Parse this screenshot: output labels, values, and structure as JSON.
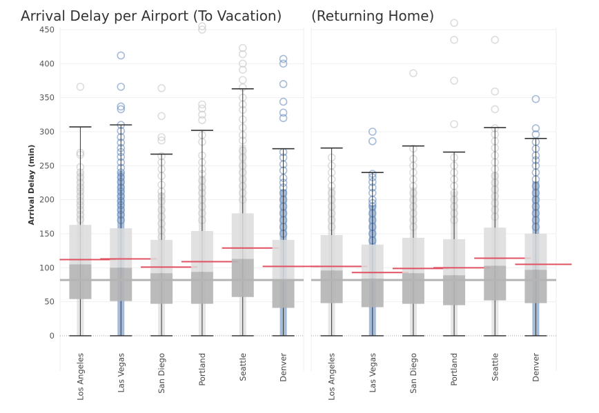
{
  "chart_data": {
    "type": "box",
    "ylabel": "Arrival Delay (min)",
    "yticks": [
      0,
      50,
      100,
      150,
      200,
      250,
      300,
      350,
      400,
      450
    ],
    "ylim": [
      -5,
      460
    ],
    "grid": true,
    "reference_line": 82,
    "colors": {
      "box_upper": "#dcdcdc",
      "box_lower": "#b4b4b4",
      "median_line": "#e05060",
      "reference_line": "#b4b4b4",
      "whisker": "#333333",
      "outlier_grey": "#c6c6c6",
      "outlier_blue": "#5b84b8"
    },
    "panels": [
      {
        "title": "Arrival Delay per Airport (To Vacation)",
        "categories": [
          "Los Angeles",
          "Las Vegas",
          "San Diego",
          "Portland",
          "Seattle",
          "Denver"
        ],
        "highlight": [
          false,
          true,
          false,
          false,
          false,
          true
        ],
        "whisker_low": [
          0,
          0,
          0,
          0,
          0,
          0
        ],
        "q1": [
          54,
          51,
          47,
          47,
          57,
          41
        ],
        "q2": [
          105,
          100,
          92,
          94,
          113,
          81
        ],
        "q3": [
          163,
          158,
          141,
          154,
          180,
          141
        ],
        "whisker_high": [
          307,
          310,
          267,
          302,
          363,
          275
        ],
        "mean": [
          112,
          113,
          101,
          109,
          129,
          102
        ],
        "outliers": [
          [
            366,
            269,
            266,
            248,
            240,
            233,
            225,
            218,
            212,
            205,
            198,
            192,
            185,
            178,
            171
          ],
          [
            412,
            366,
            337,
            333,
            310,
            301,
            292,
            284,
            276,
            270,
            263,
            255,
            247,
            240,
            233,
            226,
            218,
            212,
            205,
            198,
            192,
            185,
            178,
            170
          ],
          [
            364,
            323,
            292,
            287,
            264,
            255,
            245,
            235,
            222,
            212,
            205,
            198,
            185,
            175,
            165,
            155,
            145
          ],
          [
            455,
            450,
            340,
            334,
            325,
            317,
            295,
            285,
            265,
            255,
            245,
            238,
            228,
            218,
            210,
            200,
            190,
            180,
            170
          ],
          [
            423,
            414,
            400,
            391,
            376,
            365,
            350,
            340,
            332,
            318,
            306,
            295,
            287,
            272,
            262,
            250,
            240,
            230,
            220,
            210,
            200
          ],
          [
            407,
            400,
            370,
            344,
            328,
            320,
            270,
            262,
            252,
            243,
            232,
            225,
            218,
            210,
            200,
            190,
            180,
            170,
            160,
            150
          ]
        ]
      },
      {
        "title": "(Returning Home)",
        "categories": [
          "Los Angeles",
          "Las Vegas",
          "San Diego",
          "Portland",
          "Seattle",
          "Denver"
        ],
        "highlight": [
          false,
          true,
          false,
          false,
          false,
          true
        ],
        "whisker_low": [
          0,
          0,
          0,
          0,
          0,
          0
        ],
        "q1": [
          48,
          42,
          47,
          45,
          52,
          48
        ],
        "q2": [
          96,
          84,
          92,
          89,
          103,
          97
        ],
        "q3": [
          148,
          134,
          144,
          142,
          159,
          150
        ],
        "whisker_high": [
          276,
          240,
          279,
          270,
          306,
          290
        ],
        "mean": [
          102,
          93,
          99,
          100,
          114,
          105
        ],
        "outliers": [
          [
            262,
            250,
            240,
            230,
            220,
            210,
            200,
            190,
            180,
            170,
            160
          ],
          [
            300,
            286,
            238,
            233,
            226,
            218,
            210,
            200,
            195,
            190,
            180,
            170,
            160,
            150,
            140
          ],
          [
            386,
            275,
            260,
            250,
            240,
            230,
            220,
            210,
            200,
            190,
            180,
            170,
            160
          ],
          [
            460,
            435,
            375,
            311,
            262,
            250,
            240,
            230,
            220,
            210,
            200,
            190,
            180,
            170
          ],
          [
            435,
            359,
            333,
            305,
            296,
            286,
            276,
            265,
            255,
            245,
            235,
            225,
            215,
            205,
            195,
            185,
            175
          ],
          [
            348,
            305,
            296,
            285,
            275,
            265,
            258,
            250,
            240,
            230,
            220,
            210,
            200,
            190,
            180,
            170,
            160
          ]
        ]
      }
    ]
  }
}
